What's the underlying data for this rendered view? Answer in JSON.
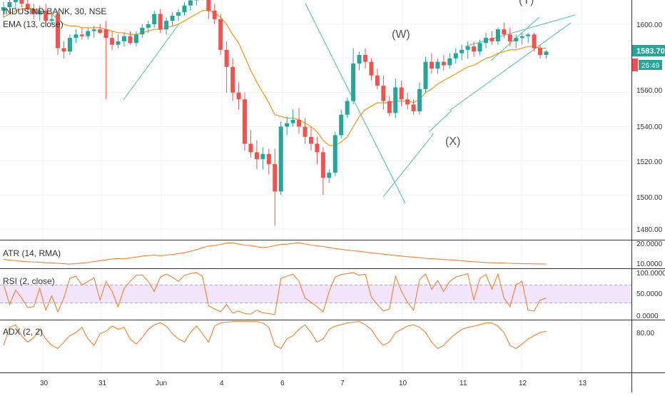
{
  "header": {
    "symbol_label": "INDUSIND BANK, 30, NSE",
    "ema_label": "EMA (13, close)"
  },
  "price_panel": {
    "last_price": "1583.70",
    "countdown": "26:49",
    "yticks": [
      "1600.00",
      "1580.00",
      "1560.00",
      "1540.00",
      "1520.00",
      "1500.00",
      "1480.00"
    ],
    "wave_labels": [
      "(W)",
      "(X)",
      "(Y)"
    ],
    "up_color": "#26a69a",
    "down_color": "#ef5350",
    "ema_color": "#f7931a",
    "trendline_color": "#4dc3a0"
  },
  "atr_panel": {
    "label": "ATR (14, RMA)",
    "yticks": [
      "20.0000",
      "10.0000"
    ],
    "color": "#f57f36"
  },
  "rsi_panel": {
    "label": "RSI (2, close)",
    "yticks": [
      "100.0000",
      "50.0000",
      "0.0000"
    ],
    "color": "#f57f36",
    "band_color": "#f1e4fb"
  },
  "adx_panel": {
    "label": "ADX (2, 2)",
    "yticks": [
      "80.00"
    ],
    "color": "#f57f36"
  },
  "xaxis": {
    "ticks": [
      "30",
      "31",
      "Jun",
      "4",
      "6",
      "7",
      "10",
      "11",
      "12",
      "13"
    ]
  },
  "chart_data": {
    "type": "candlestick",
    "title": "INDUSIND BANK, 30, NSE",
    "price_ylim": [
      1475,
      1620
    ],
    "candles_ohlc": [
      [
        1608,
        1613,
        1604,
        1610
      ],
      [
        1610,
        1616,
        1607,
        1613
      ],
      [
        1613,
        1617,
        1609,
        1615
      ],
      [
        1615,
        1619,
        1610,
        1612
      ],
      [
        1612,
        1616,
        1606,
        1609
      ],
      [
        1609,
        1612,
        1603,
        1606
      ],
      [
        1606,
        1611,
        1602,
        1608
      ],
      [
        1608,
        1612,
        1600,
        1602
      ],
      [
        1602,
        1606,
        1600,
        1603
      ],
      [
        1606,
        1608,
        1582,
        1586
      ],
      [
        1586,
        1590,
        1580,
        1584
      ],
      [
        1584,
        1594,
        1582,
        1592
      ],
      [
        1592,
        1597,
        1589,
        1594
      ],
      [
        1594,
        1598,
        1591,
        1593
      ],
      [
        1593,
        1598,
        1591,
        1596
      ],
      [
        1596,
        1599,
        1592,
        1597
      ],
      [
        1597,
        1600,
        1594,
        1595
      ],
      [
        1597,
        1602,
        1556,
        1592
      ],
      [
        1592,
        1596,
        1585,
        1588
      ],
      [
        1588,
        1594,
        1586,
        1590
      ],
      [
        1590,
        1595,
        1587,
        1593
      ],
      [
        1593,
        1596,
        1588,
        1589
      ],
      [
        1589,
        1596,
        1587,
        1594
      ],
      [
        1594,
        1600,
        1592,
        1598
      ],
      [
        1598,
        1602,
        1595,
        1600
      ],
      [
        1600,
        1608,
        1598,
        1606
      ],
      [
        1606,
        1609,
        1595,
        1597
      ],
      [
        1597,
        1604,
        1594,
        1602
      ],
      [
        1602,
        1607,
        1599,
        1605
      ],
      [
        1605,
        1609,
        1602,
        1607
      ],
      [
        1607,
        1613,
        1605,
        1611
      ],
      [
        1611,
        1616,
        1608,
        1614
      ],
      [
        1614,
        1619,
        1611,
        1617
      ],
      [
        1617,
        1621,
        1614,
        1619
      ],
      [
        1617,
        1620,
        1603,
        1608
      ],
      [
        1608,
        1612,
        1600,
        1603
      ],
      [
        1603,
        1606,
        1582,
        1585
      ],
      [
        1585,
        1590,
        1560,
        1575
      ],
      [
        1575,
        1580,
        1555,
        1560
      ],
      [
        1560,
        1566,
        1550,
        1556
      ],
      [
        1556,
        1560,
        1526,
        1530
      ],
      [
        1530,
        1538,
        1522,
        1525
      ],
      [
        1525,
        1532,
        1515,
        1521
      ],
      [
        1521,
        1528,
        1515,
        1524
      ],
      [
        1524,
        1527,
        1512,
        1518
      ],
      [
        1518,
        1527,
        1482,
        1502
      ],
      [
        1502,
        1543,
        1500,
        1540
      ],
      [
        1540,
        1546,
        1535,
        1542
      ],
      [
        1542,
        1550,
        1540,
        1544
      ],
      [
        1544,
        1551,
        1536,
        1540
      ],
      [
        1540,
        1545,
        1530,
        1534
      ],
      [
        1534,
        1540,
        1526,
        1530
      ],
      [
        1530,
        1534,
        1518,
        1525
      ],
      [
        1525,
        1528,
        1500,
        1510
      ],
      [
        1510,
        1515,
        1507,
        1513
      ],
      [
        1513,
        1537,
        1511,
        1535
      ],
      [
        1535,
        1550,
        1533,
        1547
      ],
      [
        1547,
        1557,
        1545,
        1555
      ],
      [
        1555,
        1586,
        1553,
        1577
      ],
      [
        1577,
        1584,
        1573,
        1582
      ],
      [
        1582,
        1586,
        1574,
        1578
      ],
      [
        1578,
        1580,
        1567,
        1570
      ],
      [
        1570,
        1574,
        1562,
        1564
      ],
      [
        1564,
        1570,
        1550,
        1555
      ],
      [
        1555,
        1558,
        1546,
        1548
      ],
      [
        1548,
        1568,
        1545,
        1563
      ],
      [
        1563,
        1567,
        1552,
        1556
      ],
      [
        1556,
        1560,
        1550,
        1553
      ],
      [
        1553,
        1556,
        1547,
        1549
      ],
      [
        1549,
        1566,
        1547,
        1562
      ],
      [
        1562,
        1581,
        1560,
        1578
      ],
      [
        1578,
        1583,
        1571,
        1574
      ],
      [
        1574,
        1580,
        1571,
        1578
      ],
      [
        1578,
        1582,
        1573,
        1576
      ],
      [
        1576,
        1583,
        1574,
        1580
      ],
      [
        1580,
        1586,
        1577,
        1583
      ],
      [
        1583,
        1588,
        1579,
        1585
      ],
      [
        1585,
        1590,
        1580,
        1587
      ],
      [
        1587,
        1590,
        1581,
        1584
      ],
      [
        1584,
        1591,
        1582,
        1589
      ],
      [
        1589,
        1595,
        1586,
        1592
      ],
      [
        1592,
        1596,
        1588,
        1590
      ],
      [
        1590,
        1598,
        1588,
        1597
      ],
      [
        1597,
        1601,
        1592,
        1594
      ],
      [
        1594,
        1598,
        1587,
        1590
      ],
      [
        1590,
        1594,
        1586,
        1592
      ],
      [
        1592,
        1595,
        1588,
        1593
      ],
      [
        1593,
        1595,
        1589,
        1594
      ],
      [
        1594,
        1595,
        1584,
        1586
      ],
      [
        1586,
        1588,
        1580,
        1582
      ],
      [
        1582,
        1585,
        1580,
        1584
      ]
    ],
    "ema": [
      1604,
      1606,
      1608,
      1609,
      1609,
      1609,
      1608,
      1607,
      1606,
      1603,
      1600,
      1599,
      1599,
      1598,
      1598,
      1598,
      1598,
      1597,
      1596,
      1595,
      1595,
      1594,
      1594,
      1595,
      1596,
      1597,
      1597,
      1598,
      1599,
      1600,
      1602,
      1604,
      1606,
      1608,
      1608,
      1607,
      1604,
      1600,
      1594,
      1589,
      1581,
      1573,
      1566,
      1560,
      1554,
      1547,
      1546,
      1545,
      1545,
      1544,
      1542,
      1540,
      1537,
      1532,
      1529,
      1529,
      1531,
      1534,
      1540,
      1546,
      1550,
      1552,
      1554,
      1554,
      1554,
      1555,
      1555,
      1555,
      1554,
      1556,
      1560,
      1562,
      1565,
      1567,
      1569,
      1571,
      1573,
      1575,
      1576,
      1578,
      1580,
      1581,
      1583,
      1584,
      1585,
      1585,
      1586,
      1587,
      1587,
      1586,
      1586
    ],
    "x_tick_labels": [
      "30",
      "31",
      "Jun",
      "4",
      "6",
      "7",
      "10",
      "11",
      "12",
      "13"
    ],
    "annotations": [
      "(W)",
      "(X)",
      "(Y)"
    ],
    "atr": {
      "name": "ATR (14, RMA)",
      "ylim": [
        5,
        25
      ],
      "values": [
        12.0,
        11.6,
        11.3,
        11.0,
        10.8,
        10.6,
        10.5,
        10.3,
        10.2,
        10.0,
        9.8,
        9.6,
        9.8,
        10.1,
        10.4,
        10.9,
        11.3,
        11.7,
        12.1,
        12.4,
        12.2,
        12.7,
        13.1,
        13.6,
        13.9,
        14.1,
        13.8,
        14.1,
        14.4,
        14.9,
        15.3,
        16.0,
        16.8,
        17.8,
        18.6,
        18.9,
        19.4,
        20.1,
        20.3,
        19.6,
        19.1,
        18.9,
        18.3,
        17.9,
        18.2,
        18.9,
        19.4,
        19.6,
        19.9,
        20.3,
        19.7,
        19.1,
        18.7,
        18.4,
        17.9,
        17.4,
        17.0,
        16.6,
        16.3,
        16.0,
        15.6,
        15.2,
        14.9,
        14.6,
        14.2,
        13.9,
        13.6,
        13.3,
        13.1,
        12.8,
        12.5,
        12.3,
        12.1,
        11.9,
        11.7,
        11.5,
        11.2,
        11.0,
        10.8,
        10.6,
        10.4,
        10.3,
        10.2,
        10.1,
        10.0,
        9.9,
        9.8,
        9.8,
        9.7,
        9.7,
        9.6
      ]
    },
    "rsi": {
      "name": "RSI (2, close)",
      "ylim": [
        0,
        100
      ],
      "bands": [
        70,
        30
      ],
      "values": [
        72,
        25,
        58,
        40,
        18,
        20,
        62,
        12,
        45,
        8,
        40,
        85,
        90,
        70,
        78,
        86,
        35,
        78,
        55,
        20,
        62,
        78,
        92,
        93,
        78,
        55,
        88,
        95,
        88,
        78,
        92,
        96,
        98,
        90,
        22,
        15,
        8,
        25,
        5,
        10,
        4,
        3,
        12,
        6,
        4,
        2,
        85,
        90,
        95,
        78,
        40,
        30,
        20,
        8,
        55,
        88,
        94,
        96,
        98,
        92,
        95,
        42,
        25,
        10,
        15,
        90,
        55,
        30,
        12,
        82,
        95,
        60,
        80,
        55,
        78,
        88,
        92,
        96,
        35,
        85,
        94,
        60,
        95,
        40,
        20,
        70,
        78,
        12,
        10,
        35,
        40
      ]
    },
    "adx": {
      "name": "ADX (2, 2)",
      "ylim": [
        40,
        100
      ],
      "values": [
        60,
        88,
        92,
        75,
        65,
        72,
        85,
        70,
        60,
        55,
        65,
        75,
        80,
        88,
        70,
        60,
        78,
        82,
        90,
        85,
        88,
        70,
        62,
        72,
        85,
        92,
        95,
        90,
        78,
        70,
        65,
        80,
        90,
        78,
        65,
        90,
        95,
        96,
        97,
        97,
        97,
        97,
        97,
        95,
        88,
        60,
        55,
        70,
        75,
        85,
        92,
        80,
        65,
        70,
        85,
        90,
        92,
        95,
        96,
        97,
        92,
        85,
        70,
        60,
        65,
        80,
        85,
        90,
        92,
        88,
        80,
        65,
        55,
        60,
        70,
        78,
        85,
        88,
        90,
        92,
        95,
        95,
        90,
        80,
        60,
        55,
        62,
        70,
        75,
        80,
        82
      ]
    }
  }
}
